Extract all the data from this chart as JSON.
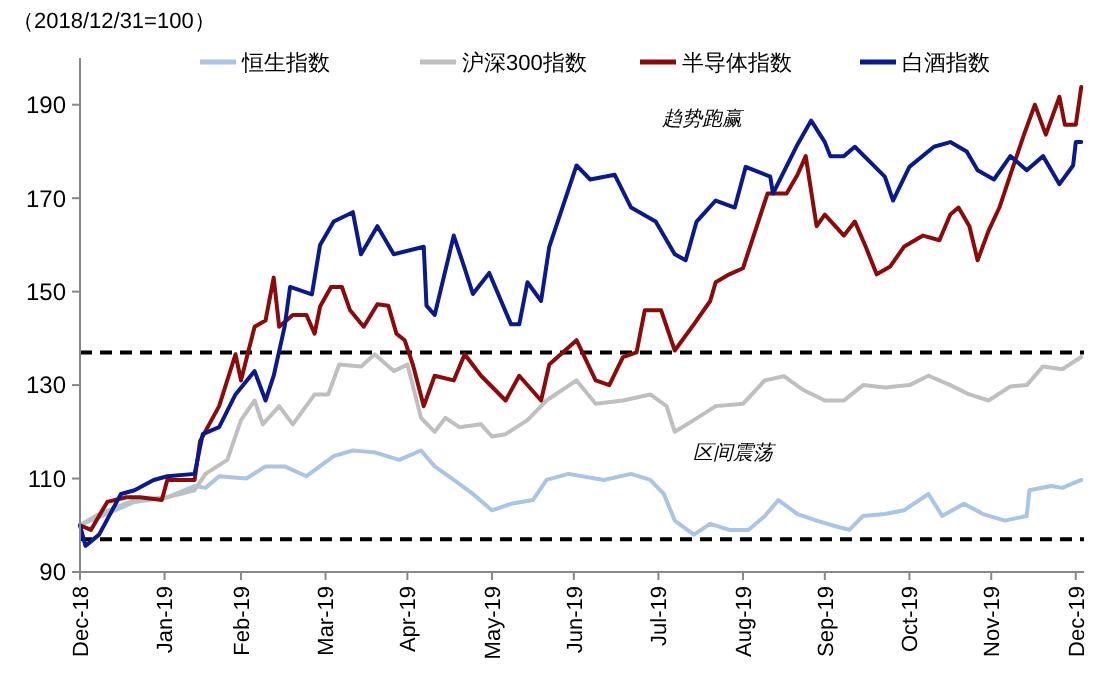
{
  "chart_data": {
    "type": "line",
    "xlim": [
      "2018-12-31",
      "2020-01-03"
    ],
    "xticks": [
      {
        "value": "2018-12-31",
        "label": "Dec-18"
      },
      {
        "value": "2019-01-31",
        "label": "Jan-19"
      },
      {
        "value": "2019-02-28",
        "label": "Feb-19"
      },
      {
        "value": "2019-03-31",
        "label": "Mar-19"
      },
      {
        "value": "2019-04-30",
        "label": "Apr-19"
      },
      {
        "value": "2019-05-31",
        "label": "May-19"
      },
      {
        "value": "2019-06-30",
        "label": "Jun-19"
      },
      {
        "value": "2019-07-31",
        "label": "Jul-19"
      },
      {
        "value": "2019-08-31",
        "label": "Aug-19"
      },
      {
        "value": "2019-09-30",
        "label": "Sep-19"
      },
      {
        "value": "2019-10-31",
        "label": "Oct-19"
      },
      {
        "value": "2019-11-30",
        "label": "Nov-19"
      },
      {
        "value": "2019-12-31",
        "label": "Dec-19"
      }
    ],
    "ylim": [
      90,
      200
    ],
    "yticks": [
      90,
      110,
      130,
      150,
      170,
      190
    ],
    "grid": false,
    "legend": "top",
    "marker": "none",
    "line_style": "solid",
    "annotations": [
      "（2018/12/31=100）",
      "趋势跑赢",
      "区间震荡"
    ],
    "ref_lines": [
      {
        "axis": "y",
        "value": 137,
        "label": null,
        "color": "#000000",
        "line_style": "dashed"
      },
      {
        "axis": "y",
        "value": 97,
        "label": null,
        "color": "#000000",
        "line_style": "dashed"
      }
    ],
    "series": [
      {
        "name": "恒生指数",
        "color": "#a9c4e4",
        "x": [
          "2018-12-31",
          "2019-01-20",
          "2019-02-01",
          "2019-02-11",
          "2019-02-15",
          "2019-02-20",
          "2019-03-02",
          "2019-03-09",
          "2019-03-16",
          "2019-03-24",
          "2019-04-03",
          "2019-04-10",
          "2019-04-18",
          "2019-04-27",
          "2019-05-05",
          "2019-05-10",
          "2019-05-17",
          "2019-05-24",
          "2019-05-31",
          "2019-06-07",
          "2019-06-15",
          "2019-06-20",
          "2019-06-28",
          "2019-07-11",
          "2019-07-21",
          "2019-07-28",
          "2019-08-02",
          "2019-08-06",
          "2019-08-13",
          "2019-08-19",
          "2019-08-26",
          "2019-09-02",
          "2019-09-08",
          "2019-09-13",
          "2019-09-20",
          "2019-09-27",
          "2019-10-04",
          "2019-10-09",
          "2019-10-14",
          "2019-10-22",
          "2019-10-29",
          "2019-11-07",
          "2019-11-12",
          "2019-11-20",
          "2019-11-27",
          "2019-12-05",
          "2019-12-13",
          "2019-12-14",
          "2019-12-22",
          "2019-12-26",
          "2020-01-02"
        ],
        "values": [
          100,
          105,
          106,
          108.4,
          108,
          110.5,
          110,
          112.6,
          112.6,
          110.5,
          114.8,
          116,
          115.6,
          114,
          116,
          112.6,
          109.7,
          106.7,
          103.2,
          104.6,
          105.4,
          109.7,
          111,
          109.7,
          111,
          109.7,
          106.7,
          101,
          98,
          100.3,
          99,
          99,
          102,
          105.4,
          102.4,
          101,
          99.8,
          99,
          102,
          102.4,
          103.2,
          106.7,
          102,
          104.6,
          102.4,
          101,
          102,
          107.5,
          108.4,
          108,
          109.7
        ]
      },
      {
        "name": "沪深300指数",
        "color": "#bfbfbf",
        "x": [
          "2018-12-31",
          "2019-01-07",
          "2019-01-20",
          "2019-02-01",
          "2019-02-11",
          "2019-02-15",
          "2019-02-23",
          "2019-02-28",
          "2019-03-05",
          "2019-03-08",
          "2019-03-14",
          "2019-03-19",
          "2019-03-27",
          "2019-04-01",
          "2019-04-05",
          "2019-04-13",
          "2019-04-18",
          "2019-04-25",
          "2019-04-30",
          "2019-05-05",
          "2019-05-10",
          "2019-05-14",
          "2019-05-19",
          "2019-05-27",
          "2019-05-31",
          "2019-06-05",
          "2019-06-13",
          "2019-06-20",
          "2019-07-01",
          "2019-07-08",
          "2019-07-18",
          "2019-07-28",
          "2019-08-03",
          "2019-08-06",
          "2019-08-13",
          "2019-08-21",
          "2019-08-31",
          "2019-09-08",
          "2019-09-15",
          "2019-09-22",
          "2019-09-30",
          "2019-10-07",
          "2019-10-14",
          "2019-10-22",
          "2019-10-31",
          "2019-11-07",
          "2019-11-15",
          "2019-11-22",
          "2019-11-29",
          "2019-12-07",
          "2019-12-13",
          "2019-12-19",
          "2019-12-26",
          "2020-01-02"
        ],
        "values": [
          100,
          102.4,
          105.4,
          106,
          107.5,
          111,
          114,
          122.5,
          126.7,
          121.6,
          125.5,
          121.6,
          128,
          128,
          134.4,
          134,
          136.6,
          133,
          134.4,
          123,
          120,
          123,
          121,
          121.6,
          119,
          119.5,
          122.5,
          126.7,
          131,
          126,
          126.7,
          128,
          125.5,
          120,
          122.5,
          125.5,
          126,
          131,
          131.9,
          129,
          126.7,
          126.7,
          130,
          129.5,
          130,
          132,
          130,
          128,
          126.7,
          129.7,
          130,
          134,
          133.4,
          136
        ]
      },
      {
        "name": "半导体指数",
        "color": "#8b0a0a",
        "x": [
          "2018-12-31",
          "2019-01-04",
          "2019-01-10",
          "2019-01-17",
          "2019-01-22",
          "2019-01-30",
          "2019-02-01",
          "2019-02-11",
          "2019-02-13",
          "2019-02-20",
          "2019-02-26",
          "2019-02-28",
          "2019-03-05",
          "2019-03-09",
          "2019-03-12",
          "2019-03-14",
          "2019-03-19",
          "2019-03-24",
          "2019-03-27",
          "2019-03-29",
          "2019-04-02",
          "2019-04-06",
          "2019-04-09",
          "2019-04-14",
          "2019-04-19",
          "2019-04-23",
          "2019-04-26",
          "2019-04-29",
          "2019-05-02",
          "2019-05-06",
          "2019-05-10",
          "2019-05-17",
          "2019-05-21",
          "2019-05-27",
          "2019-06-05",
          "2019-06-10",
          "2019-06-18",
          "2019-06-21",
          "2019-07-01",
          "2019-07-08",
          "2019-07-13",
          "2019-07-18",
          "2019-07-23",
          "2019-07-26",
          "2019-08-01",
          "2019-08-06",
          "2019-08-13",
          "2019-08-19",
          "2019-08-21",
          "2019-08-26",
          "2019-08-31",
          "2019-09-09",
          "2019-09-16",
          "2019-09-20",
          "2019-09-23",
          "2019-09-27",
          "2019-09-30",
          "2019-10-07",
          "2019-10-11",
          "2019-10-15",
          "2019-10-19",
          "2019-10-24",
          "2019-10-29",
          "2019-11-05",
          "2019-11-11",
          "2019-11-15",
          "2019-11-18",
          "2019-11-22",
          "2019-11-25",
          "2019-11-29",
          "2019-12-03",
          "2019-12-07",
          "2019-12-12",
          "2019-12-16",
          "2019-12-20",
          "2019-12-25",
          "2019-12-27",
          "2019-12-31",
          "2020-01-02"
        ],
        "values": [
          100,
          99,
          105,
          106,
          106,
          105.4,
          109.7,
          109.7,
          118,
          125.5,
          136.6,
          131,
          142.5,
          143.8,
          153,
          142.5,
          145,
          145,
          141,
          146.8,
          151,
          151,
          146,
          142.5,
          147.3,
          147,
          141,
          139.6,
          134.4,
          125.5,
          132,
          131,
          136.6,
          132,
          126.7,
          132,
          126.7,
          134.4,
          139.6,
          131,
          130,
          136,
          137,
          146,
          146,
          137.4,
          143,
          148,
          152,
          153.7,
          155,
          171,
          171,
          175,
          179,
          164,
          166.5,
          162,
          165,
          159.6,
          153.7,
          155.4,
          159.6,
          162,
          161,
          166.5,
          168,
          164,
          156.7,
          163,
          168,
          175,
          183.6,
          190,
          183.6,
          191.7,
          185.7,
          185.7,
          193.8
        ]
      },
      {
        "name": "白酒指数",
        "color": "#0a1a8c",
        "x": [
          "2018-12-31",
          "2019-01-02",
          "2019-01-07",
          "2019-01-15",
          "2019-01-20",
          "2019-01-27",
          "2019-02-01",
          "2019-02-11",
          "2019-02-14",
          "2019-02-20",
          "2019-02-26",
          "2019-03-05",
          "2019-03-09",
          "2019-03-12",
          "2019-03-16",
          "2019-03-18",
          "2019-03-26",
          "2019-03-29",
          "2019-04-03",
          "2019-04-10",
          "2019-04-13",
          "2019-04-19",
          "2019-04-25",
          "2019-05-06",
          "2019-05-07",
          "2019-05-10",
          "2019-05-17",
          "2019-05-21",
          "2019-05-24",
          "2019-05-30",
          "2019-06-07",
          "2019-06-10",
          "2019-06-13",
          "2019-06-18",
          "2019-06-21",
          "2019-07-01",
          "2019-07-06",
          "2019-07-15",
          "2019-07-21",
          "2019-07-30",
          "2019-08-06",
          "2019-08-10",
          "2019-08-14",
          "2019-08-21",
          "2019-08-28",
          "2019-09-01",
          "2019-09-10",
          "2019-09-11",
          "2019-09-20",
          "2019-09-25",
          "2019-09-30",
          "2019-10-02",
          "2019-10-07",
          "2019-10-11",
          "2019-10-22",
          "2019-10-25",
          "2019-10-31",
          "2019-11-09",
          "2019-11-15",
          "2019-11-21",
          "2019-11-25",
          "2019-12-01",
          "2019-12-07",
          "2019-12-13",
          "2019-12-19",
          "2019-12-25",
          "2019-12-30",
          "2019-12-31",
          "2020-01-02"
        ],
        "values": [
          100,
          95.6,
          98,
          106.7,
          107.5,
          109.7,
          110.5,
          111,
          119.5,
          121,
          128,
          133,
          126.7,
          132,
          142.5,
          151,
          149.4,
          160,
          165,
          167,
          158,
          164,
          158,
          159.6,
          147,
          145,
          162,
          155,
          149.5,
          154,
          143,
          143,
          152,
          148,
          159.6,
          177,
          174,
          175,
          168,
          165,
          158,
          156.7,
          165,
          169.5,
          168,
          176.7,
          174.6,
          171,
          181.5,
          186.6,
          182,
          179,
          179,
          181,
          174.6,
          169.5,
          176.7,
          181,
          182,
          180,
          176,
          174,
          179,
          176,
          179,
          173,
          177,
          182,
          182
        ]
      }
    ]
  }
}
